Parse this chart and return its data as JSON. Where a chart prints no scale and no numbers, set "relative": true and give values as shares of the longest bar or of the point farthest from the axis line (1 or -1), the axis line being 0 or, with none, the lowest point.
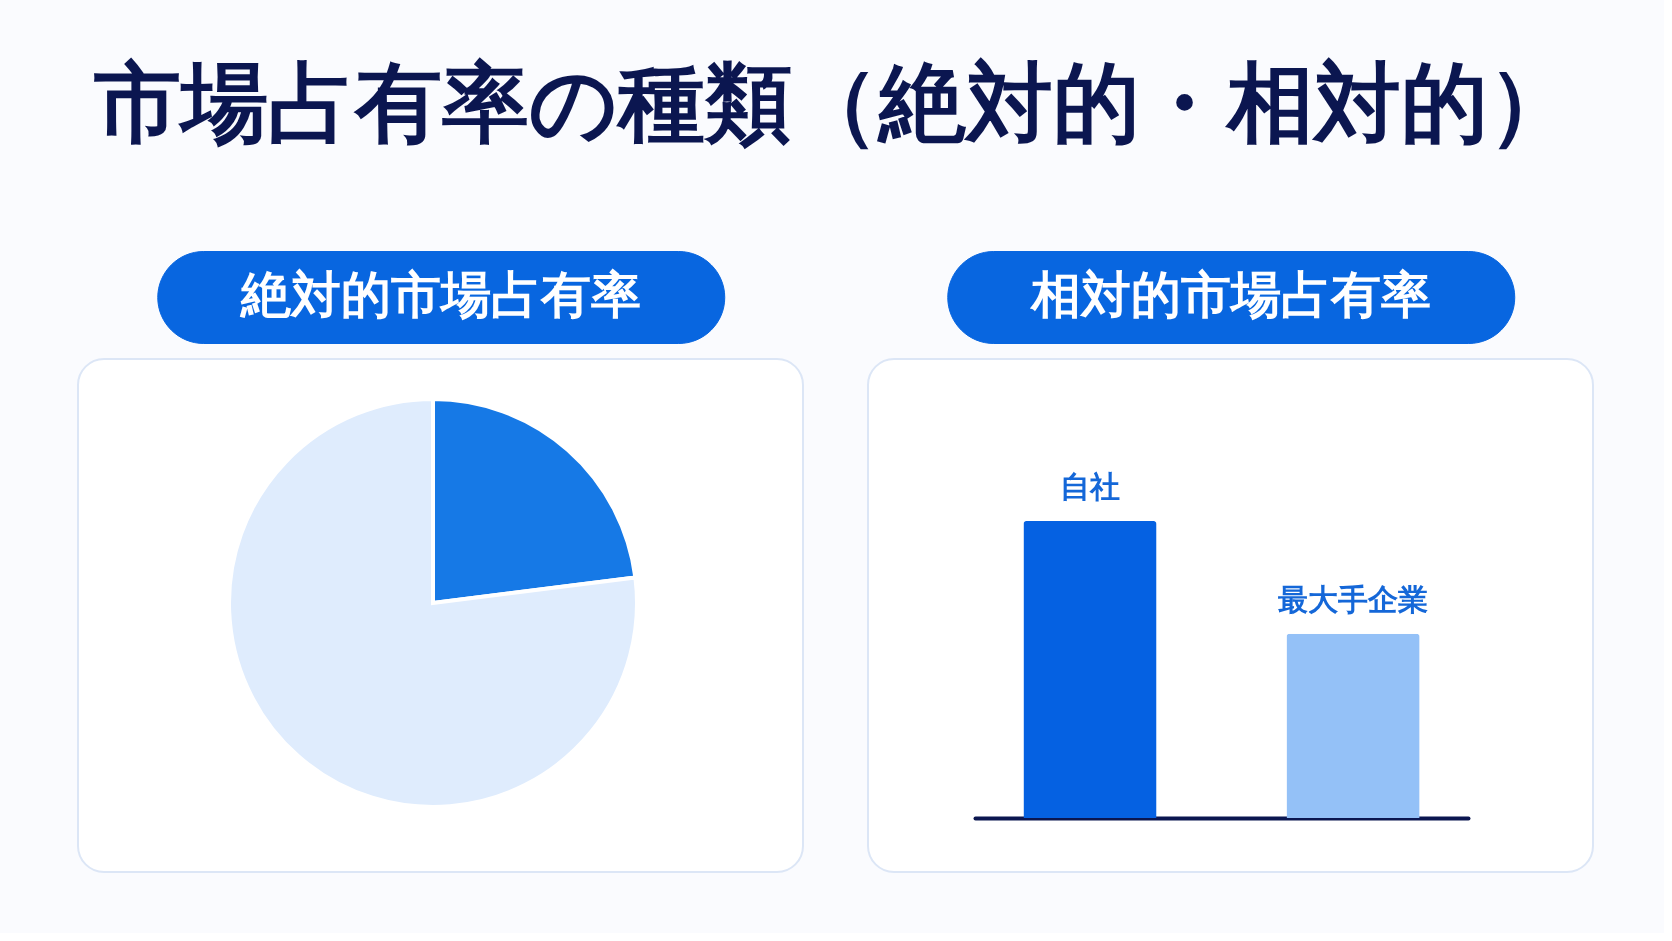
{
  "chart_data": [
    {
      "type": "other",
      "title": "市場占有率の種類（絶対的・相対的）"
    },
    {
      "type": "pie",
      "title": "絶対的市場占有率",
      "categories": [
        null,
        null
      ],
      "values": [
        23,
        77
      ],
      "colors": [
        "#1679e6",
        "#dfecfd"
      ]
    },
    {
      "type": "bar",
      "title": "相対的市場占有率",
      "categories": [
        "自社",
        "最大手企業"
      ],
      "values": [
        1,
        0.62
      ],
      "colors": [
        "#0561e2",
        "#94c1f7"
      ],
      "relative": true
    }
  ]
}
